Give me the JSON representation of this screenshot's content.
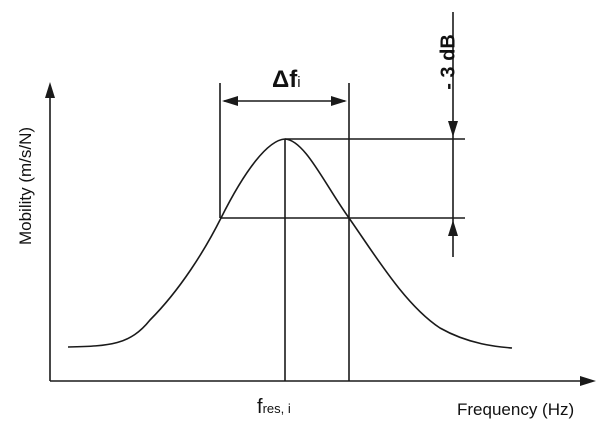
{
  "diagram": {
    "y_axis_label": "Mobility (m/s/N)",
    "x_axis_label": "Frequency (Hz)",
    "center_freq_label": {
      "main": "f",
      "sub": "res, i"
    },
    "bandwidth_label": {
      "main": "Δf",
      "sub": "i"
    },
    "level_drop_label": "- 3 dB"
  },
  "colors": {
    "line": "#1a1a1a",
    "background": "#ffffff"
  }
}
